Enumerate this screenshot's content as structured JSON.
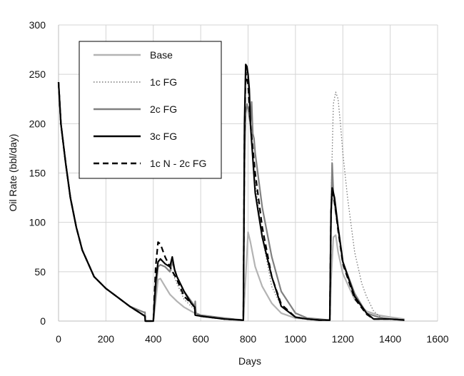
{
  "chart_data": {
    "type": "line",
    "title": "",
    "xlabel": "Days",
    "ylabel": "Oil Rate (bbl/day)",
    "xlim": [
      0,
      1600
    ],
    "ylim": [
      0,
      300
    ],
    "x_ticks": [
      0,
      200,
      400,
      600,
      800,
      1000,
      1200,
      1400,
      1600
    ],
    "y_ticks": [
      0,
      50,
      100,
      150,
      200,
      250,
      300
    ],
    "grid": true,
    "legend_position": "top-left",
    "series": [
      {
        "name": "Base",
        "color": "#b3b3b3",
        "style": "solid",
        "x": [
          0,
          10,
          30,
          50,
          75,
          100,
          150,
          200,
          250,
          300,
          365,
          366,
          400,
          410,
          420,
          430,
          450,
          470,
          500,
          530,
          560,
          575,
          577,
          600,
          700,
          775,
          780,
          790,
          800,
          810,
          830,
          860,
          900,
          940,
          1000,
          1050,
          1100,
          1140,
          1145,
          1150,
          1160,
          1170,
          1180,
          1200,
          1250,
          1300,
          1350,
          1400,
          1460
        ],
        "y": [
          242,
          200,
          160,
          125,
          95,
          72,
          45,
          33,
          24,
          15,
          5,
          0,
          0,
          20,
          42,
          43,
          35,
          27,
          20,
          14,
          10,
          8,
          6,
          5,
          2,
          1,
          1,
          45,
          90,
          80,
          55,
          35,
          18,
          8,
          3,
          2,
          1,
          1,
          1,
          40,
          85,
          87,
          70,
          48,
          22,
          10,
          6,
          4,
          2
        ]
      },
      {
        "name": "1c FG",
        "color": "#777777",
        "style": "dotted",
        "x": [
          0,
          10,
          30,
          50,
          75,
          100,
          150,
          200,
          250,
          300,
          365,
          366,
          400,
          410,
          420,
          430,
          450,
          470,
          500,
          530,
          560,
          575,
          577,
          600,
          700,
          775,
          780,
          785,
          790,
          795,
          800,
          810,
          830,
          860,
          900,
          940,
          1000,
          1050,
          1100,
          1140,
          1145,
          1150,
          1160,
          1170,
          1180,
          1190,
          1200,
          1220,
          1250,
          1280,
          1300,
          1330,
          1360,
          1400,
          1460
        ],
        "y": [
          242,
          200,
          160,
          125,
          95,
          72,
          45,
          33,
          24,
          15,
          5,
          0,
          0,
          35,
          60,
          62,
          58,
          55,
          38,
          22,
          15,
          12,
          6,
          5,
          2,
          1,
          1,
          200,
          245,
          255,
          240,
          200,
          140,
          85,
          35,
          15,
          4,
          2,
          1,
          1,
          1,
          120,
          220,
          232,
          225,
          200,
          170,
          125,
          70,
          38,
          25,
          10,
          4,
          2,
          1
        ]
      },
      {
        "name": "2c FG",
        "color": "#808080",
        "style": "solid",
        "x": [
          0,
          10,
          30,
          50,
          75,
          100,
          150,
          200,
          250,
          300,
          360,
          365,
          366,
          400,
          410,
          420,
          430,
          450,
          470,
          480,
          490,
          500,
          530,
          560,
          575,
          577,
          580,
          600,
          700,
          775,
          780,
          785,
          790,
          795,
          800,
          810,
          815,
          820,
          825,
          830,
          860,
          900,
          940,
          1000,
          1050,
          1100,
          1140,
          1145,
          1150,
          1155,
          1160,
          1165,
          1170,
          1180,
          1200,
          1250,
          1300,
          1350,
          1400,
          1460
        ],
        "y": [
          242,
          200,
          160,
          125,
          95,
          72,
          45,
          33,
          24,
          15,
          9,
          9,
          0,
          0,
          30,
          55,
          57,
          55,
          50,
          60,
          52,
          45,
          30,
          20,
          15,
          20,
          8,
          6,
          3,
          1,
          1,
          160,
          210,
          220,
          215,
          200,
          222,
          190,
          185,
          170,
          115,
          65,
          30,
          8,
          3,
          2,
          1,
          1,
          100,
          160,
          130,
          120,
          110,
          95,
          60,
          28,
          8,
          4,
          2,
          1
        ]
      },
      {
        "name": "3c FG",
        "color": "#000000",
        "style": "solid",
        "x": [
          0,
          10,
          30,
          50,
          75,
          100,
          150,
          200,
          250,
          300,
          365,
          366,
          400,
          410,
          420,
          430,
          450,
          470,
          480,
          490,
          500,
          530,
          560,
          575,
          577,
          600,
          700,
          775,
          780,
          785,
          790,
          795,
          800,
          805,
          810,
          830,
          860,
          900,
          940,
          1000,
          1050,
          1100,
          1140,
          1145,
          1150,
          1155,
          1160,
          1165,
          1170,
          1180,
          1200,
          1250,
          1300,
          1330,
          1360,
          1400,
          1460
        ],
        "y": [
          242,
          200,
          160,
          125,
          95,
          72,
          45,
          33,
          24,
          15,
          5,
          0,
          0,
          40,
          60,
          63,
          58,
          55,
          65,
          52,
          45,
          30,
          18,
          14,
          6,
          5,
          2,
          1,
          1,
          200,
          260,
          258,
          250,
          235,
          200,
          130,
          85,
          45,
          15,
          4,
          2,
          1,
          1,
          1,
          110,
          135,
          130,
          125,
          115,
          95,
          60,
          25,
          8,
          2,
          2,
          2,
          1
        ]
      },
      {
        "name": "1c N - 2c FG",
        "color": "#000000",
        "style": "dashed",
        "x": [
          0,
          10,
          30,
          50,
          75,
          100,
          150,
          200,
          250,
          300,
          365,
          366,
          400,
          410,
          420,
          430,
          450,
          470,
          500,
          530,
          560,
          575,
          577,
          600,
          700,
          775,
          780,
          785,
          790,
          795,
          800,
          810,
          830,
          860,
          900,
          940,
          1000,
          1050,
          1100,
          1140,
          1145,
          1150,
          1155,
          1160,
          1165,
          1170,
          1180,
          1200,
          1250,
          1300,
          1330,
          1360,
          1400,
          1460
        ],
        "y": [
          242,
          200,
          160,
          125,
          95,
          72,
          45,
          33,
          24,
          15,
          5,
          0,
          0,
          55,
          80,
          78,
          65,
          55,
          42,
          25,
          18,
          14,
          6,
          5,
          2,
          1,
          1,
          190,
          252,
          245,
          240,
          200,
          150,
          95,
          45,
          17,
          4,
          2,
          1,
          1,
          1,
          110,
          130,
          128,
          120,
          112,
          92,
          58,
          23,
          7,
          2,
          2,
          2,
          1
        ]
      }
    ]
  }
}
